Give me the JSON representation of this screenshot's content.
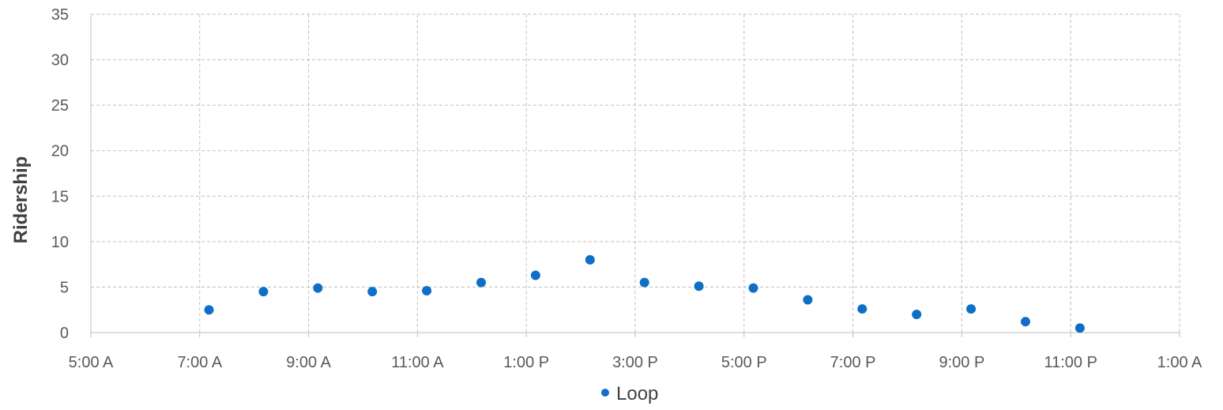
{
  "chart_data": {
    "type": "scatter",
    "title": "",
    "xlabel": "",
    "ylabel": "Ridership",
    "x_ticks": [
      "5:00 A",
      "7:00 A",
      "9:00 A",
      "11:00 A",
      "1:00 P",
      "3:00 P",
      "5:00 P",
      "7:00 P",
      "9:00 P",
      "11:00 P",
      "1:00 A"
    ],
    "y_ticks": [
      "0",
      "5",
      "10",
      "15",
      "20",
      "25",
      "30",
      "35"
    ],
    "ylim": [
      0,
      35
    ],
    "xlim_hours": [
      5,
      25
    ],
    "grid": true,
    "legend_position": "bottom",
    "series": [
      {
        "name": "Loop",
        "color": "#0f6fc6",
        "points": [
          {
            "x": "7:10 A",
            "hour": 7.17,
            "y": 2.5
          },
          {
            "x": "8:10 A",
            "hour": 8.17,
            "y": 4.5
          },
          {
            "x": "9:10 A",
            "hour": 9.17,
            "y": 4.9
          },
          {
            "x": "10:10 A",
            "hour": 10.17,
            "y": 4.5
          },
          {
            "x": "11:10 A",
            "hour": 11.17,
            "y": 4.6
          },
          {
            "x": "12:10 P",
            "hour": 12.17,
            "y": 5.5
          },
          {
            "x": "1:10 P",
            "hour": 13.17,
            "y": 6.3
          },
          {
            "x": "2:10 P",
            "hour": 14.17,
            "y": 8.0
          },
          {
            "x": "3:10 P",
            "hour": 15.17,
            "y": 5.5
          },
          {
            "x": "4:10 P",
            "hour": 16.17,
            "y": 5.1
          },
          {
            "x": "5:10 P",
            "hour": 17.17,
            "y": 4.9
          },
          {
            "x": "6:10 P",
            "hour": 18.17,
            "y": 3.6
          },
          {
            "x": "7:10 P",
            "hour": 19.17,
            "y": 2.6
          },
          {
            "x": "8:10 P",
            "hour": 20.17,
            "y": 2.0
          },
          {
            "x": "9:10 P",
            "hour": 21.17,
            "y": 2.6
          },
          {
            "x": "10:10 P",
            "hour": 22.17,
            "y": 1.2
          },
          {
            "x": "11:10 P",
            "hour": 23.17,
            "y": 0.5
          }
        ]
      }
    ]
  }
}
